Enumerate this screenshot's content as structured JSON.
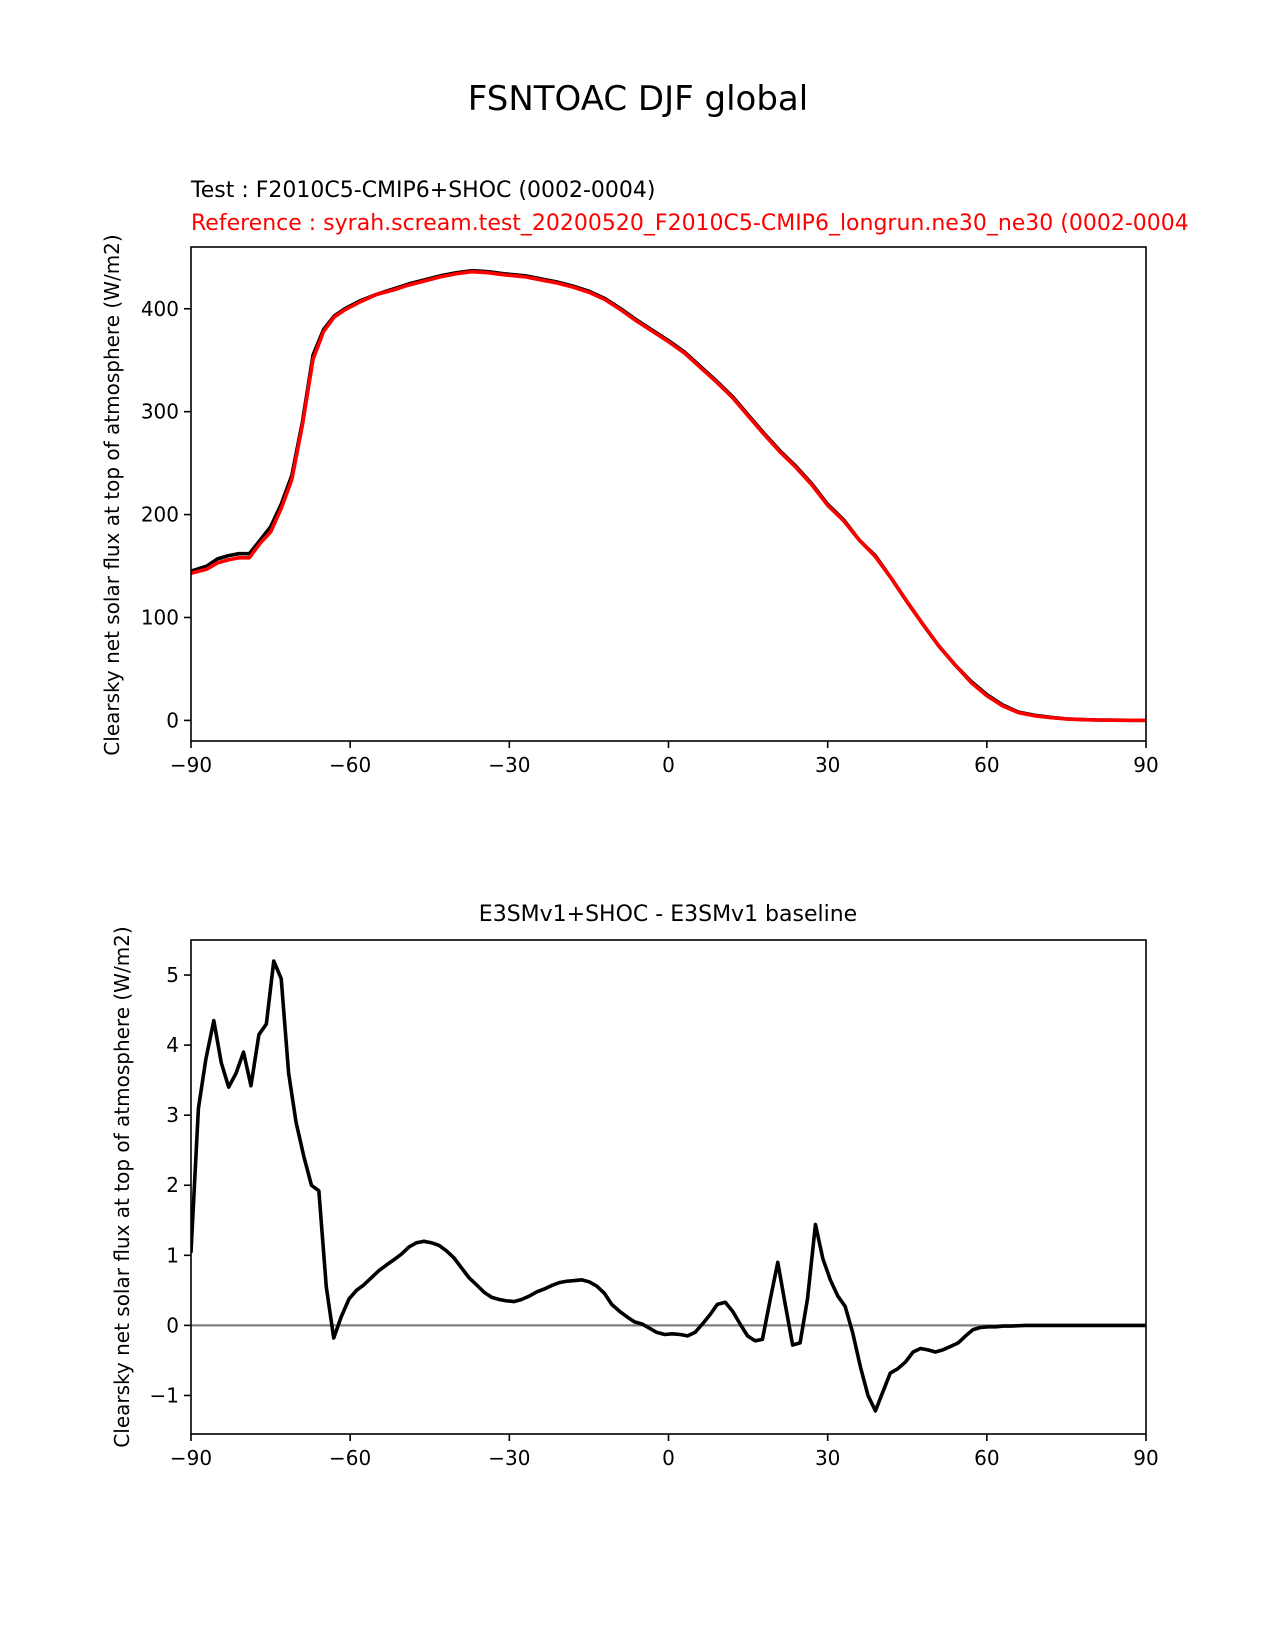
{
  "figure": {
    "title": "FSNTOAC DJF global"
  },
  "chart_data": [
    {
      "type": "line",
      "subtitle_test": "Test : F2010C5-CMIP6+SHOC (0002-0004)",
      "subtitle_reference": "Reference : syrah.scream.test_20200520_F2010C5-CMIP6_longrun.ne30_ne30 (0002-0004",
      "xlabel": "",
      "ylabel": "Clearsky net solar flux at top of atmosphere (W/m2)",
      "xlim": [
        -90,
        90
      ],
      "ylim": [
        -20,
        460
      ],
      "xticks": [
        -90,
        -60,
        -30,
        0,
        30,
        60,
        90
      ],
      "xtick_labels": [
        "−90",
        "−60",
        "−30",
        "0",
        "30",
        "60",
        "90"
      ],
      "yticks": [
        0,
        100,
        200,
        300,
        400
      ],
      "ytick_labels": [
        "0",
        "100",
        "200",
        "300",
        "400"
      ],
      "x": [
        -90,
        -87,
        -85,
        -83,
        -81,
        -79,
        -77,
        -75,
        -73,
        -71,
        -69,
        -67,
        -65,
        -63,
        -61,
        -58,
        -55,
        -52,
        -49,
        -46,
        -43,
        -40,
        -37,
        -34,
        -31,
        -27,
        -24,
        -21,
        -18,
        -15,
        -12,
        -9,
        -6,
        -3,
        0,
        3,
        6,
        9,
        12,
        15,
        18,
        21,
        24,
        27,
        30,
        33,
        36,
        39,
        42,
        45,
        48,
        51,
        54,
        57,
        60,
        63,
        66,
        69,
        72,
        75,
        78,
        81,
        84,
        87,
        90
      ],
      "series": [
        {
          "name": "Test",
          "color": "#000000",
          "values": [
            145,
            150,
            157,
            160,
            162,
            162,
            175,
            188,
            210,
            238,
            290,
            355,
            380,
            393,
            400,
            408,
            414,
            419,
            424,
            428,
            432,
            435,
            437,
            436,
            434,
            432,
            429,
            426,
            422,
            417,
            410,
            400,
            389,
            379,
            369,
            358,
            344,
            330,
            315,
            297,
            279,
            262,
            247,
            230,
            210,
            195,
            175,
            160,
            138,
            115,
            93,
            72,
            54,
            38,
            25,
            15,
            8,
            5,
            3,
            1.5,
            0.8,
            0.4,
            0.2,
            0.1,
            0.05
          ]
        },
        {
          "name": "Reference",
          "color": "#ff0000",
          "values": [
            143,
            147,
            153,
            156,
            158,
            158,
            172,
            183,
            206,
            234,
            287,
            351,
            378,
            392,
            399,
            407,
            414,
            418,
            423,
            427,
            431,
            434,
            436,
            435,
            433,
            431,
            428,
            425,
            421,
            416,
            409,
            399,
            388,
            378,
            368,
            357,
            343,
            329,
            314,
            296,
            278,
            261,
            246,
            229,
            209,
            194,
            175,
            159,
            138,
            115,
            93,
            72,
            54,
            37,
            24,
            14,
            7.5,
            4.5,
            2.7,
            1.4,
            0.7,
            0.4,
            0.2,
            0.1,
            0.05
          ]
        }
      ]
    },
    {
      "type": "line",
      "title": "E3SMv1+SHOC - E3SMv1 baseline",
      "xlabel": "",
      "ylabel": "Clearsky net solar flux at top of atmosphere (W/m2)",
      "xlim": [
        -90,
        90
      ],
      "ylim": [
        -1.55,
        5.5
      ],
      "xticks": [
        -90,
        -60,
        -30,
        0,
        30,
        60,
        90
      ],
      "xtick_labels": [
        "−90",
        "−60",
        "−30",
        "0",
        "30",
        "60",
        "90"
      ],
      "yticks": [
        -1,
        0,
        1,
        2,
        3,
        4,
        5
      ],
      "ytick_labels": [
        "−1",
        "0",
        "1",
        "2",
        "3",
        "4",
        "5"
      ],
      "zero_line_color": "#808080",
      "x": [
        -90,
        -88.6,
        -87.2,
        -85.7,
        -84.3,
        -82.9,
        -81.5,
        -80.1,
        -78.7,
        -77.2,
        -75.8,
        -74.4,
        -73,
        -71.6,
        -70.2,
        -68.7,
        -67.3,
        -65.9,
        -64.5,
        -63.1,
        -61.7,
        -60.2,
        -58.8,
        -57.4,
        -56,
        -54.6,
        -53.2,
        -51.7,
        -50.3,
        -48.9,
        -47.5,
        -46.1,
        -44.7,
        -43.2,
        -41.8,
        -40.4,
        -39,
        -37.6,
        -36.2,
        -34.7,
        -33.3,
        -31.9,
        -30.5,
        -29.1,
        -27.7,
        -26.2,
        -24.8,
        -23.4,
        -22,
        -20.6,
        -19.2,
        -17.7,
        -16.3,
        -14.9,
        -13.5,
        -12.1,
        -10.7,
        -9.2,
        -7.8,
        -6.4,
        -5,
        -3.6,
        -2.2,
        -0.7,
        0.7,
        2.2,
        3.6,
        5,
        6.4,
        7.8,
        9.2,
        10.7,
        12.1,
        13.5,
        14.9,
        16.3,
        17.7,
        19.2,
        20.6,
        22,
        23.4,
        24.8,
        26.2,
        27.7,
        29.1,
        30.5,
        31.9,
        33.3,
        34.7,
        36.2,
        37.6,
        39,
        40.4,
        41.8,
        43.2,
        44.7,
        46.1,
        47.5,
        48.9,
        50.3,
        51.7,
        53.2,
        54.6,
        56,
        57.4,
        58.8,
        60.2,
        61.7,
        63.1,
        64.5,
        65.9,
        67.3,
        68.7,
        70.2,
        71.6,
        73,
        74.4,
        75.8,
        77.2,
        78.7,
        80.1,
        81.5,
        82.9,
        84.3,
        85.7,
        87.2,
        88.6,
        90
      ],
      "series": [
        {
          "name": "E3SMv1+SHOC - E3SMv1",
          "color": "#000000",
          "values": [
            1.05,
            3.1,
            3.8,
            4.35,
            3.75,
            3.4,
            3.6,
            3.9,
            3.42,
            4.15,
            4.3,
            5.2,
            4.95,
            3.6,
            2.9,
            2.4,
            2.0,
            1.92,
            0.55,
            -0.18,
            0.12,
            0.38,
            0.5,
            0.58,
            0.68,
            0.78,
            0.86,
            0.94,
            1.02,
            1.12,
            1.18,
            1.2,
            1.18,
            1.14,
            1.06,
            0.96,
            0.82,
            0.68,
            0.58,
            0.47,
            0.4,
            0.37,
            0.35,
            0.34,
            0.37,
            0.42,
            0.48,
            0.52,
            0.57,
            0.61,
            0.63,
            0.64,
            0.65,
            0.62,
            0.56,
            0.46,
            0.3,
            0.2,
            0.12,
            0.05,
            0.02,
            -0.04,
            -0.1,
            -0.13,
            -0.12,
            -0.13,
            -0.15,
            -0.1,
            0.02,
            0.15,
            0.3,
            0.33,
            0.2,
            0.02,
            -0.15,
            -0.22,
            -0.2,
            0.38,
            0.9,
            0.3,
            -0.28,
            -0.25,
            0.38,
            1.44,
            0.95,
            0.65,
            0.42,
            0.27,
            -0.1,
            -0.6,
            -1.0,
            -1.22,
            -0.95,
            -0.68,
            -0.62,
            -0.52,
            -0.38,
            -0.33,
            -0.35,
            -0.38,
            -0.35,
            -0.3,
            -0.25,
            -0.15,
            -0.06,
            -0.03,
            -0.02,
            -0.02,
            -0.01,
            -0.01,
            -0.005,
            0,
            0,
            0,
            0,
            0,
            0,
            0,
            0,
            0,
            0,
            0,
            0,
            0,
            0,
            0,
            0,
            0
          ]
        }
      ]
    }
  ]
}
